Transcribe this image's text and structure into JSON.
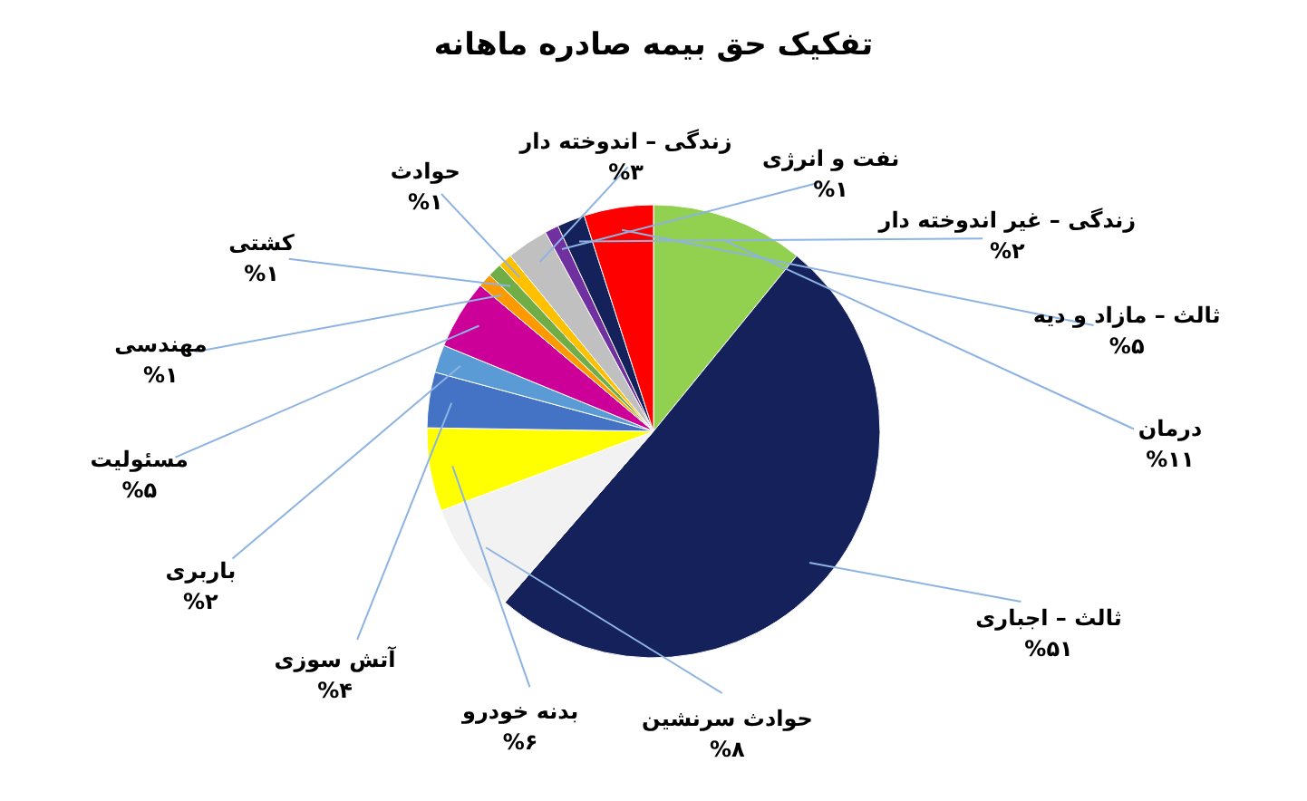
{
  "chart_data": {
    "type": "pie",
    "title": "تفکیک حق بیمه صادره ماهانه",
    "categories": [
      "درمان",
      "ثالث – اجباری",
      "حوادث سرنشین",
      "بدنه خودرو",
      "آتش سوزی",
      "باربری",
      "مسئولیت",
      "مهندسی",
      "کشتی",
      "حوادث",
      "زندگی – اندوخته دار",
      "نفت و انرژی",
      "زندگی – غیر اندوخته دار",
      "ثالث – مازاد و دیه"
    ],
    "values": [
      11,
      51,
      8,
      6,
      4,
      2,
      5,
      1,
      1,
      1,
      3,
      1,
      2,
      5
    ],
    "value_labels": [
      "%۱۱",
      "%۵۱",
      "%۸",
      "%۶",
      "%۴",
      "%۲",
      "%۵",
      "%۱",
      "%۱",
      "%۱",
      "%۳",
      "%۱",
      "%۲",
      "%۵"
    ],
    "colors": [
      "#92d050",
      "#14215a",
      "#f2f2f2",
      "#ffff00",
      "#4472c4",
      "#5b9bd5",
      "#cc0099",
      "#ff9900",
      "#70ad47",
      "#ffc000",
      "#c0c0c0",
      "#7030a0",
      "#14215a",
      "#ff0000"
    ]
  }
}
